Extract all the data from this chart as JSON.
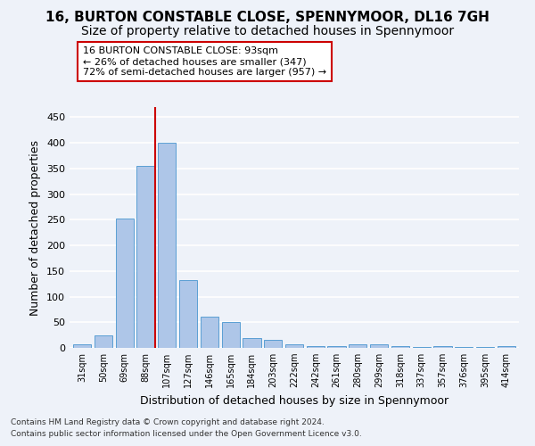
{
  "title": "16, BURTON CONSTABLE CLOSE, SPENNYMOOR, DL16 7GH",
  "subtitle": "Size of property relative to detached houses in Spennymoor",
  "xlabel": "Distribution of detached houses by size in Spennymoor",
  "ylabel": "Number of detached properties",
  "categories": [
    "31sqm",
    "50sqm",
    "69sqm",
    "88sqm",
    "107sqm",
    "127sqm",
    "146sqm",
    "165sqm",
    "184sqm",
    "203sqm",
    "222sqm",
    "242sqm",
    "261sqm",
    "280sqm",
    "299sqm",
    "318sqm",
    "337sqm",
    "357sqm",
    "376sqm",
    "395sqm",
    "414sqm"
  ],
  "values": [
    7,
    25,
    252,
    355,
    401,
    132,
    61,
    50,
    19,
    15,
    7,
    3,
    4,
    7,
    7,
    4,
    2,
    3,
    1,
    2,
    3
  ],
  "bar_color": "#aec6e8",
  "bar_edge_color": "#5a9fd4",
  "property_bin_index": 3,
  "vline_color": "#cc0000",
  "annotation_line1": "16 BURTON CONSTABLE CLOSE: 93sqm",
  "annotation_line2": "← 26% of detached houses are smaller (347)",
  "annotation_line3": "72% of semi-detached houses are larger (957) →",
  "annotation_box_color": "white",
  "annotation_box_edge": "#cc0000",
  "footer_line1": "Contains HM Land Registry data © Crown copyright and database right 2024.",
  "footer_line2": "Contains public sector information licensed under the Open Government Licence v3.0.",
  "ylim": [
    0,
    470
  ],
  "yticks": [
    0,
    50,
    100,
    150,
    200,
    250,
    300,
    350,
    400,
    450
  ],
  "bg_color": "#eef2f9",
  "grid_color": "white",
  "title_fontsize": 11,
  "subtitle_fontsize": 10,
  "xlabel_fontsize": 9,
  "ylabel_fontsize": 9,
  "footer_fontsize": 6.5
}
